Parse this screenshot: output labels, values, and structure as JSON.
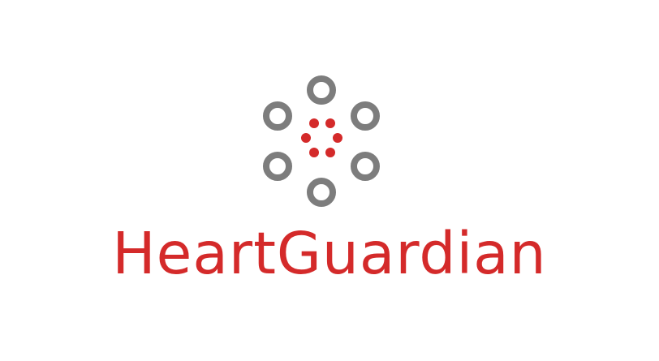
{
  "brand": {
    "name": "HeartGuardian",
    "icon": "heart-guardian-logo-icon"
  },
  "colors": {
    "primary_red": "#d42a2a",
    "ring_gray": "#7d7d7d",
    "background": "#ffffff"
  }
}
